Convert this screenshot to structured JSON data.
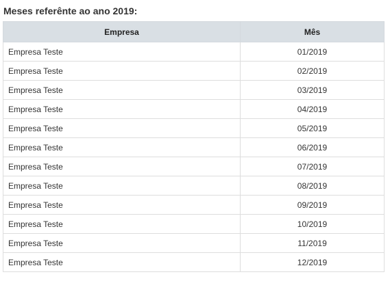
{
  "title": "Meses referênte ao ano 2019:",
  "table": {
    "headers": [
      "Empresa",
      "Mês"
    ],
    "rows": [
      [
        "Empresa Teste",
        "01/2019"
      ],
      [
        "Empresa Teste",
        "02/2019"
      ],
      [
        "Empresa Teste",
        "03/2019"
      ],
      [
        "Empresa Teste",
        "04/2019"
      ],
      [
        "Empresa Teste",
        "05/2019"
      ],
      [
        "Empresa Teste",
        "06/2019"
      ],
      [
        "Empresa Teste",
        "07/2019"
      ],
      [
        "Empresa Teste",
        "08/2019"
      ],
      [
        "Empresa Teste",
        "09/2019"
      ],
      [
        "Empresa Teste",
        "10/2019"
      ],
      [
        "Empresa Teste",
        "11/2019"
      ],
      [
        "Empresa Teste",
        "12/2019"
      ]
    ]
  },
  "colors": {
    "header_bg": "#d9dfe4",
    "border": "#dddddd",
    "text": "#333333"
  }
}
